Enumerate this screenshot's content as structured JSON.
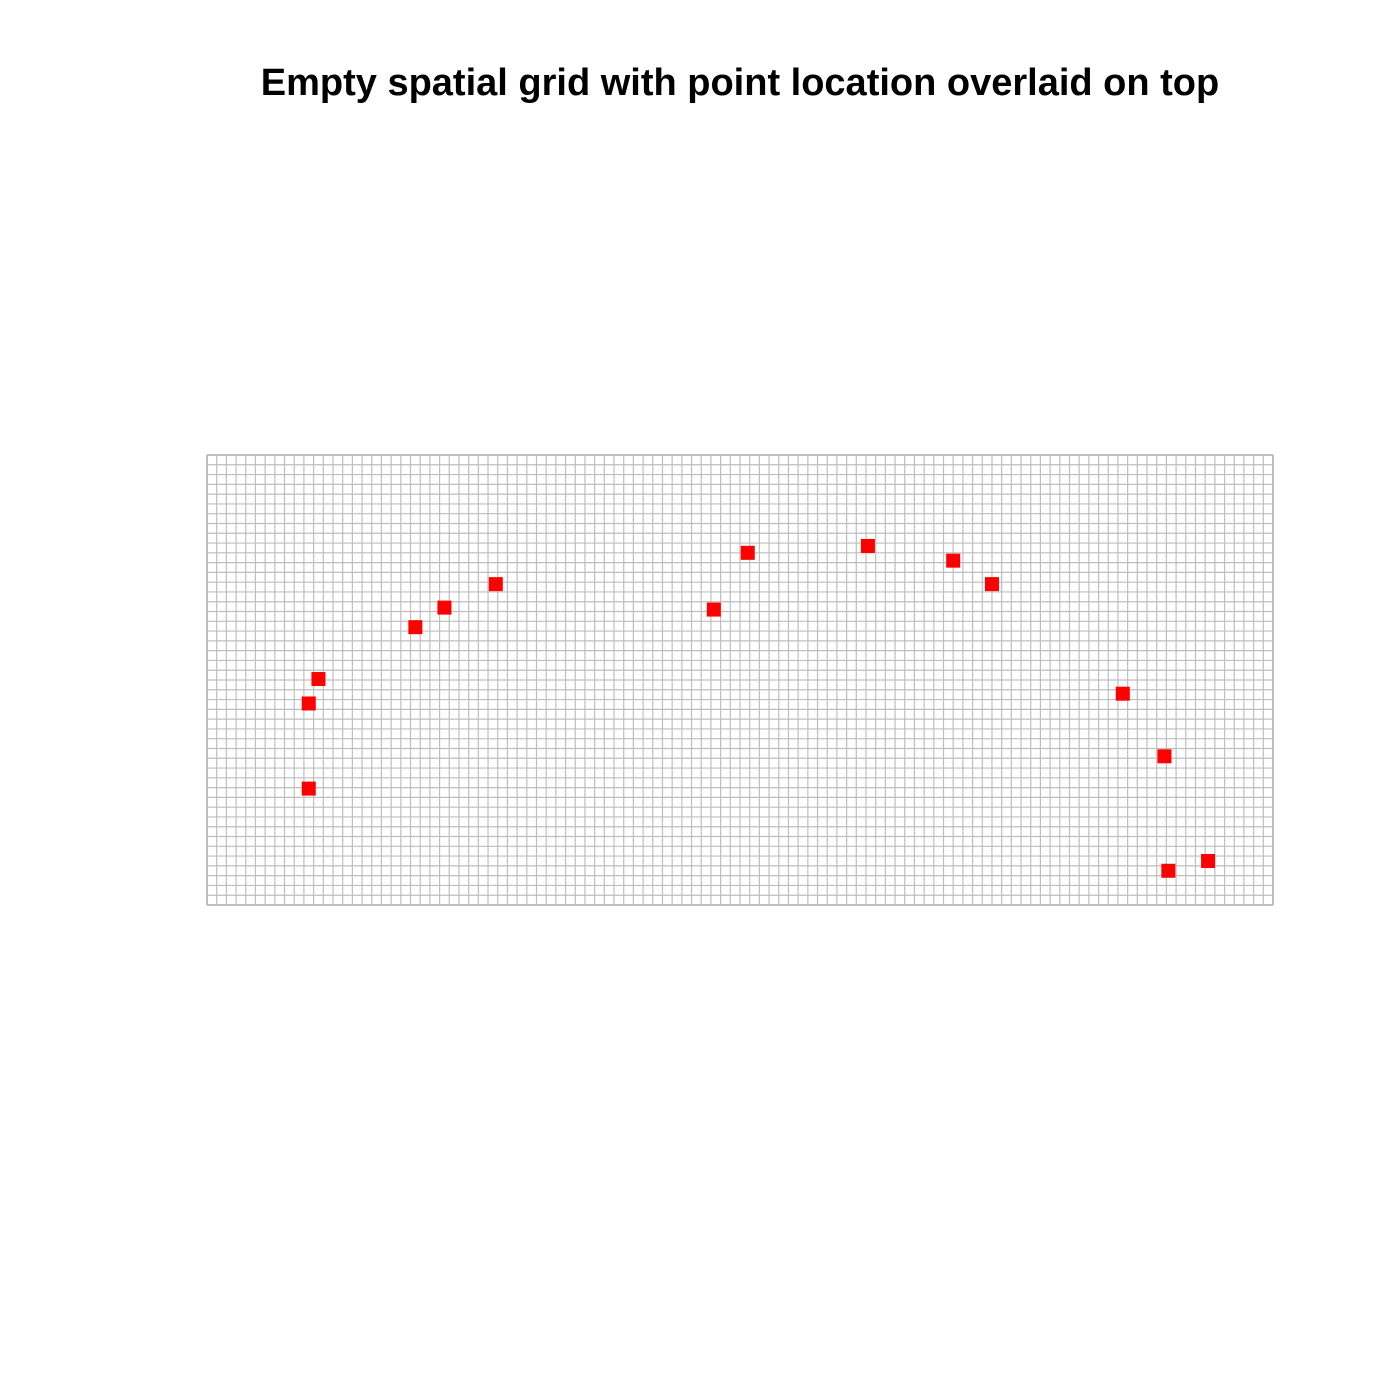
{
  "chart_data": {
    "type": "scatter",
    "title": "Empty spatial grid with point location overlaid on top",
    "xlabel": "",
    "ylabel": "",
    "grid": true,
    "grid_cells": {
      "columns": 110,
      "rows": 46
    },
    "xlim": [
      0,
      110
    ],
    "ylim": [
      0,
      46
    ],
    "colors": {
      "grid_line": "#bebebe",
      "point": "#ff0000",
      "background": "#ffffff"
    },
    "points": [
      {
        "x": 10.5,
        "y": 11.9
      },
      {
        "x": 10.5,
        "y": 20.6
      },
      {
        "x": 11.5,
        "y": 23.1
      },
      {
        "x": 21.5,
        "y": 28.4
      },
      {
        "x": 24.5,
        "y": 30.4
      },
      {
        "x": 29.8,
        "y": 32.8
      },
      {
        "x": 52.3,
        "y": 30.2
      },
      {
        "x": 55.8,
        "y": 36.0
      },
      {
        "x": 68.2,
        "y": 36.7
      },
      {
        "x": 77.0,
        "y": 35.2
      },
      {
        "x": 81.0,
        "y": 32.8
      },
      {
        "x": 94.5,
        "y": 21.6
      },
      {
        "x": 98.8,
        "y": 15.2
      },
      {
        "x": 99.2,
        "y": 3.5
      },
      {
        "x": 103.3,
        "y": 4.5
      }
    ]
  }
}
